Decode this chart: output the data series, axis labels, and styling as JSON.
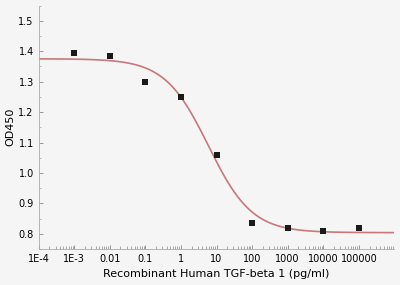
{
  "x_data": [
    0.001,
    0.01,
    0.1,
    1,
    10,
    100,
    1000,
    10000,
    100000
  ],
  "y_data": [
    1.395,
    1.385,
    1.3,
    1.25,
    1.06,
    0.835,
    0.82,
    0.81,
    0.82
  ],
  "marker_color": "#1a1a1a",
  "line_color": "#c87878",
  "xlabel": "Recombinant Human TGF-beta 1 (pg/ml)",
  "ylabel": "OD450",
  "ylim": [
    0.75,
    1.55
  ],
  "yticks": [
    0.8,
    0.9,
    1.0,
    1.1,
    1.2,
    1.3,
    1.4,
    1.5
  ],
  "xtick_labels": [
    "1E-4",
    "1E-3",
    "0.01",
    "0.1",
    "1",
    "10",
    "100",
    "1000",
    "10000",
    "100000"
  ],
  "xtick_values": [
    0.0001,
    0.001,
    0.01,
    0.1,
    1,
    10,
    100,
    1000,
    10000,
    100000
  ],
  "background_color": "#f5f5f5",
  "marker_size": 4,
  "line_width": 1.2,
  "xlabel_fontsize": 8,
  "ylabel_fontsize": 8,
  "tick_labelsize": 7
}
